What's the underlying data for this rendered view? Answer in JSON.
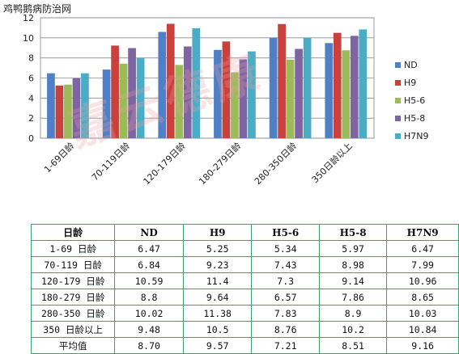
{
  "site_label": "鸡鸭鹅病防治网",
  "watermark": "嘉云德康",
  "chart_data": {
    "type": "bar",
    "categories": [
      "1-69日龄",
      "70-119日龄",
      "120-179日龄",
      "180-279日龄",
      "280-350日龄",
      "350日龄以上"
    ],
    "series": [
      {
        "name": "ND",
        "color": "#4f7fc7",
        "values": [
          6.47,
          6.84,
          10.59,
          8.8,
          10.02,
          9.48
        ]
      },
      {
        "name": "H9",
        "color": "#c9413c",
        "values": [
          5.25,
          9.23,
          11.4,
          9.64,
          11.38,
          10.5
        ]
      },
      {
        "name": "H5-6",
        "color": "#9bbb59",
        "values": [
          5.34,
          7.43,
          7.3,
          6.57,
          7.83,
          8.76
        ]
      },
      {
        "name": "H5-8",
        "color": "#7f64a2",
        "values": [
          5.97,
          8.98,
          9.14,
          7.86,
          8.9,
          10.2
        ]
      },
      {
        "name": "H7N9",
        "color": "#4bacc6",
        "values": [
          6.47,
          7.99,
          10.96,
          8.65,
          10.03,
          10.84
        ]
      }
    ],
    "ylim": [
      0,
      12
    ],
    "yticks": [
      "0",
      "2",
      "4",
      "6",
      "8",
      "10",
      "12"
    ],
    "grid": true,
    "legend": "right",
    "title": "",
    "xlabel": "",
    "ylabel": ""
  },
  "table": {
    "headers": [
      "日龄",
      "ND",
      "H9",
      "H5-6",
      "H5-8",
      "H7N9"
    ],
    "rows": [
      [
        "1-69 日龄",
        "6.47",
        "5.25",
        "5.34",
        "5.97",
        "6.47"
      ],
      [
        "70-119 日龄",
        "6.84",
        "9.23",
        "7.43",
        "8.98",
        "7.99"
      ],
      [
        "120-179 日龄",
        "10.59",
        "11.4",
        "7.3",
        "9.14",
        "10.96"
      ],
      [
        "180-279 日龄",
        "8.8",
        "9.64",
        "6.57",
        "7.86",
        "8.65"
      ],
      [
        "280-350 日龄",
        "10.02",
        "11.38",
        "7.83",
        "8.9",
        "10.03"
      ],
      [
        "350 日龄以上",
        "9.48",
        "10.5",
        "8.76",
        "10.2",
        "10.84"
      ],
      [
        "平均值",
        "8.70",
        "9.57",
        "7.21",
        "8.51",
        "9.16"
      ]
    ]
  }
}
